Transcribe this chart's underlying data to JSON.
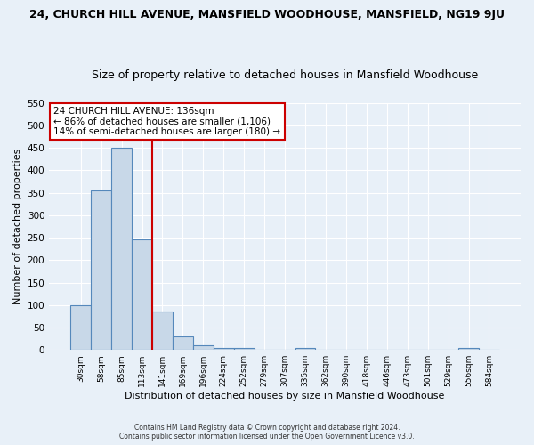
{
  "title": "24, CHURCH HILL AVENUE, MANSFIELD WOODHOUSE, MANSFIELD, NG19 9JU",
  "subtitle": "Size of property relative to detached houses in Mansfield Woodhouse",
  "xlabel": "Distribution of detached houses by size in Mansfield Woodhouse",
  "ylabel": "Number of detached properties",
  "categories": [
    "30sqm",
    "58sqm",
    "85sqm",
    "113sqm",
    "141sqm",
    "169sqm",
    "196sqm",
    "224sqm",
    "252sqm",
    "279sqm",
    "307sqm",
    "335sqm",
    "362sqm",
    "390sqm",
    "418sqm",
    "446sqm",
    "473sqm",
    "501sqm",
    "529sqm",
    "556sqm",
    "584sqm"
  ],
  "values": [
    100,
    355,
    450,
    246,
    86,
    30,
    10,
    5,
    5,
    0,
    0,
    5,
    0,
    0,
    0,
    0,
    0,
    0,
    0,
    5,
    0
  ],
  "bar_color": "#c8d8e8",
  "bar_edge_color": "#5588bb",
  "vline_x_index": 4,
  "vline_color": "#cc0000",
  "annotation_text": "24 CHURCH HILL AVENUE: 136sqm\n← 86% of detached houses are smaller (1,106)\n14% of semi-detached houses are larger (180) →",
  "annotation_box_color": "#ffffff",
  "annotation_box_edge": "#cc0000",
  "ylim": [
    0,
    550
  ],
  "yticks": [
    0,
    50,
    100,
    150,
    200,
    250,
    300,
    350,
    400,
    450,
    500,
    550
  ],
  "background_color": "#e8f0f8",
  "grid_color": "#ffffff",
  "title_fontsize": 9,
  "subtitle_fontsize": 9,
  "footer": "Contains HM Land Registry data © Crown copyright and database right 2024.\nContains public sector information licensed under the Open Government Licence v3.0."
}
